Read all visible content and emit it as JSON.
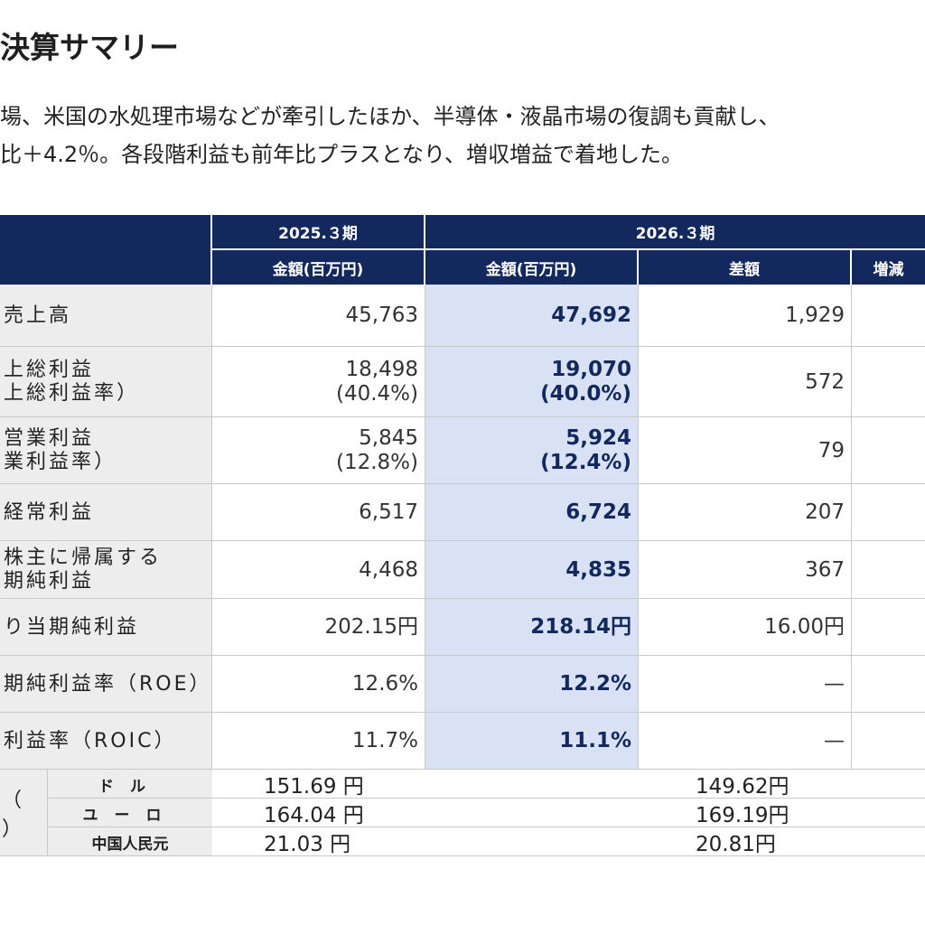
{
  "page": {
    "title": "決算サマリー",
    "summary": [
      "場、米国の水処理市場などが牽引したほか、半導体・液晶市場の復調も貢献し、",
      "比＋4.2％。各段階利益も前年比プラスとなり、増収増益で着地した。"
    ]
  },
  "table": {
    "period_headers": [
      "2025.３期",
      "2026.３期"
    ],
    "sub_headers": [
      "金額(百万円)",
      "金額(百万円)",
      "差額",
      "増減"
    ],
    "rows": [
      {
        "label": [
          "売上高"
        ],
        "prev": [
          "45,763"
        ],
        "curr": [
          "47,692"
        ],
        "diff": "1,929"
      },
      {
        "label": [
          "上総利益",
          "上総利益率）"
        ],
        "prev": [
          "18,498",
          "(40.4%)"
        ],
        "curr": [
          "19,070",
          "(40.0%)"
        ],
        "diff": "572"
      },
      {
        "label": [
          "営業利益",
          "業利益率）"
        ],
        "prev": [
          "5,845",
          "(12.8%)"
        ],
        "curr": [
          "5,924",
          "(12.4%)"
        ],
        "diff": "79"
      },
      {
        "label": [
          "経常利益"
        ],
        "prev": [
          "6,517"
        ],
        "curr": [
          "6,724"
        ],
        "diff": "207"
      },
      {
        "label": [
          "株主に帰属する",
          "期純利益"
        ],
        "prev": [
          "4,468"
        ],
        "curr": [
          "4,835"
        ],
        "diff": "367"
      },
      {
        "label": [
          "り当期純利益"
        ],
        "prev": [
          "202.15円"
        ],
        "curr": [
          "218.14円"
        ],
        "diff": "16.00円"
      },
      {
        "label": [
          "期純利益率（ROE）"
        ],
        "prev": [
          "12.6%"
        ],
        "curr": [
          "12.2%"
        ],
        "diff": "—"
      },
      {
        "label": [
          "利益率（ROIC）"
        ],
        "prev": [
          "11.7%"
        ],
        "curr": [
          "11.1%"
        ],
        "diff": "—"
      }
    ],
    "fx_side": [
      "（",
      "）"
    ],
    "fx": [
      {
        "currency": "ドル",
        "prev": "151.69 円",
        "curr": "149.62円"
      },
      {
        "currency": "ユーロ",
        "prev": "164.04 円",
        "curr": "169.19円"
      },
      {
        "currency": "中国人民元",
        "prev": "21.03 円",
        "curr": "20.81円"
      }
    ]
  },
  "colors": {
    "header": "#13295e",
    "label_bg": "#ededed",
    "current_bg": "#d8e2f4",
    "current_text": "#13295e"
  }
}
